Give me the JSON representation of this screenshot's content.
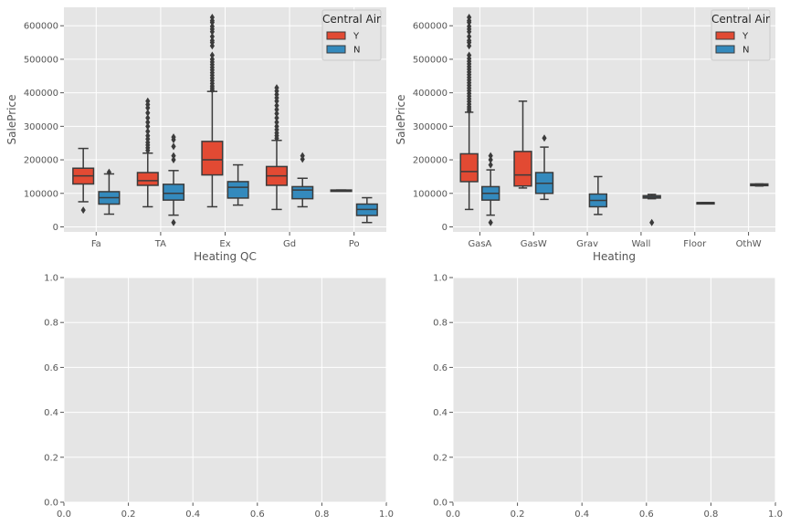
{
  "colors": {
    "Y": "#e24a33",
    "N": "#348abd",
    "panel": "#e5e5e5",
    "grid": "#ffffff",
    "line": "#3b3b3b"
  },
  "chart_data": [
    {
      "type": "box",
      "xlabel": "Heating QC",
      "ylabel": "SalePrice",
      "ylim": [
        -15000,
        655000
      ],
      "yticks": [
        0,
        100000,
        200000,
        300000,
        400000,
        500000,
        600000
      ],
      "categories": [
        "Fa",
        "TA",
        "Ex",
        "Gd",
        "Po"
      ],
      "legend": {
        "title": "Central Air",
        "entries": [
          "Y",
          "N"
        ],
        "position": "top-right"
      },
      "series": [
        {
          "name": "Y",
          "boxes": [
            {
              "category": "Fa",
              "whislo": 75000,
              "q1": 128000,
              "med": 152000,
              "q3": 175000,
              "whishi": 234000,
              "fliers": [
                50000
              ]
            },
            {
              "category": "TA",
              "whislo": 60000,
              "q1": 124000,
              "med": 138000,
              "q3": 162000,
              "whishi": 220000,
              "fliers": [
                228000,
                236000,
                244000,
                252000,
                262000,
                272000,
                285000,
                300000,
                312000,
                325000,
                340000,
                355000,
                365000,
                375000
              ]
            },
            {
              "category": "Ex",
              "whislo": 60000,
              "q1": 155000,
              "med": 200000,
              "q3": 255000,
              "whishi": 404000,
              "fliers": [
                408000,
                414000,
                420000,
                428000,
                436000,
                444000,
                452000,
                460000,
                468000,
                476000,
                484000,
                492000,
                500000,
                512000,
                540000,
                550000,
                556000,
                568000,
                582000,
                590000,
                598000,
                610000,
                615000,
                625000
              ]
            },
            {
              "category": "Gd",
              "whislo": 52000,
              "q1": 124000,
              "med": 152000,
              "q3": 180000,
              "whishi": 258000,
              "fliers": [
                264000,
                272000,
                280000,
                290000,
                300000,
                312000,
                325000,
                338000,
                350000,
                362000,
                375000,
                385000,
                395000,
                405000,
                415000
              ]
            },
            {
              "category": "Po",
              "whislo": 108000,
              "q1": 108000,
              "med": 109000,
              "q3": 110000,
              "whishi": 110000,
              "fliers": []
            }
          ]
        },
        {
          "name": "N",
          "boxes": [
            {
              "category": "Fa",
              "whislo": 38000,
              "q1": 68000,
              "med": 87000,
              "q3": 105000,
              "whishi": 158000,
              "fliers": [
                163000
              ]
            },
            {
              "category": "TA",
              "whislo": 35000,
              "q1": 80000,
              "med": 100000,
              "q3": 127000,
              "whishi": 168000,
              "fliers": [
                13000,
                200000,
                212000,
                240000,
                260000,
                268000
              ]
            },
            {
              "category": "Ex",
              "whislo": 65000,
              "q1": 86000,
              "med": 118000,
              "q3": 135000,
              "whishi": 185000,
              "fliers": []
            },
            {
              "category": "Gd",
              "whislo": 60000,
              "q1": 84000,
              "med": 110000,
              "q3": 120000,
              "whishi": 145000,
              "fliers": [
                202000,
                212000
              ]
            },
            {
              "category": "Po",
              "whislo": 13000,
              "q1": 34000,
              "med": 52000,
              "q3": 68000,
              "whishi": 87000,
              "fliers": []
            }
          ]
        }
      ]
    },
    {
      "type": "box",
      "xlabel": "Heating",
      "ylabel": "SalePrice",
      "ylim": [
        -15000,
        655000
      ],
      "yticks": [
        0,
        100000,
        200000,
        300000,
        400000,
        500000,
        600000
      ],
      "categories": [
        "GasA",
        "GasW",
        "Grav",
        "Wall",
        "Floor",
        "OthW"
      ],
      "legend": {
        "title": "Central Air",
        "entries": [
          "Y",
          "N"
        ],
        "position": "top-right"
      },
      "series": [
        {
          "name": "Y",
          "boxes": [
            {
              "category": "GasA",
              "whislo": 52000,
              "q1": 135000,
              "med": 165000,
              "q3": 218000,
              "whishi": 342000,
              "fliers": [
                346000,
                352000,
                358000,
                366000,
                374000,
                382000,
                390000,
                398000,
                406000,
                414000,
                422000,
                430000,
                438000,
                446000,
                454000,
                462000,
                470000,
                478000,
                486000,
                494000,
                502000,
                512000,
                540000,
                550000,
                556000,
                568000,
                582000,
                590000,
                598000,
                610000,
                615000,
                625000
              ]
            },
            {
              "category": "GasW",
              "whislo": 116000,
              "q1": 122000,
              "med": 155000,
              "q3": 225000,
              "whishi": 375000,
              "fliers": []
            }
          ]
        },
        {
          "name": "N",
          "boxes": [
            {
              "category": "GasA",
              "whislo": 35000,
              "q1": 80000,
              "med": 100000,
              "q3": 120000,
              "whishi": 170000,
              "fliers": [
                13000,
                185000,
                200000,
                212000
              ]
            },
            {
              "category": "GasW",
              "whislo": 82000,
              "q1": 100000,
              "med": 130000,
              "q3": 162000,
              "whishi": 238000,
              "fliers": [
                265000
              ]
            },
            {
              "category": "Grav",
              "whislo": 37000,
              "q1": 60000,
              "med": 79000,
              "q3": 98000,
              "whishi": 150000,
              "fliers": []
            },
            {
              "category": "Wall",
              "whislo": 84000,
              "q1": 86000,
              "med": 89000,
              "q3": 93000,
              "whishi": 97000,
              "fliers": [
                13000
              ]
            },
            {
              "category": "Floor",
              "whislo": 72500,
              "q1": 72500,
              "med": 72500,
              "q3": 72500,
              "whishi": 72500,
              "fliers": []
            },
            {
              "category": "OthW",
              "whislo": 122000,
              "q1": 123000,
              "med": 125000,
              "q3": 128000,
              "whishi": 128000,
              "fliers": []
            }
          ]
        }
      ]
    },
    {
      "type": "empty",
      "xlim": [
        0,
        1
      ],
      "ylim": [
        0,
        1
      ],
      "xticks": [
        "0.0",
        "0.2",
        "0.4",
        "0.6",
        "0.8",
        "1.0"
      ],
      "yticks": [
        "0.0",
        "0.2",
        "0.4",
        "0.6",
        "0.8",
        "1.0"
      ]
    },
    {
      "type": "empty",
      "xlim": [
        0,
        1
      ],
      "ylim": [
        0,
        1
      ],
      "xticks": [
        "0.0",
        "0.2",
        "0.4",
        "0.6",
        "0.8",
        "1.0"
      ],
      "yticks": [
        "0.0",
        "0.2",
        "0.4",
        "0.6",
        "0.8",
        "1.0"
      ]
    }
  ]
}
